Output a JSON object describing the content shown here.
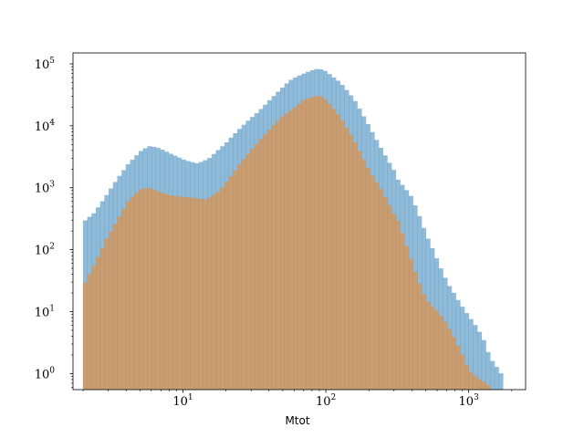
{
  "chart_data": {
    "type": "histogram",
    "xlabel": "Mtot",
    "ylabel": "",
    "title": "",
    "x_scale": "log",
    "y_scale": "log",
    "xlim": [
      1.7,
      2500
    ],
    "ylim": [
      0.55,
      150000
    ],
    "grid": false,
    "legend": "none",
    "x_ticks": [
      {
        "value": 10,
        "base": "10",
        "exp": "1"
      },
      {
        "value": 100,
        "base": "10",
        "exp": "2"
      },
      {
        "value": 1000,
        "base": "10",
        "exp": "3"
      }
    ],
    "y_ticks": [
      {
        "value": 1,
        "base": "10",
        "exp": "0"
      },
      {
        "value": 10,
        "base": "10",
        "exp": "1"
      },
      {
        "value": 100,
        "base": "10",
        "exp": "2"
      },
      {
        "value": 1000,
        "base": "10",
        "exp": "3"
      },
      {
        "value": 10000,
        "base": "10",
        "exp": "4"
      },
      {
        "value": 100000,
        "base": "10",
        "exp": "5"
      }
    ],
    "bins": {
      "log10_start": 0.3,
      "log10_end": 3.24,
      "count": 98
    },
    "series": [
      {
        "color": "#1f77b4",
        "alpha": 0.5,
        "profile": [
          [
            0.3,
            280
          ],
          [
            0.38,
            380
          ],
          [
            0.46,
            700
          ],
          [
            0.54,
            1400
          ],
          [
            0.62,
            2600
          ],
          [
            0.7,
            4000
          ],
          [
            0.76,
            4700
          ],
          [
            0.82,
            4300
          ],
          [
            0.9,
            3500
          ],
          [
            1.0,
            2900
          ],
          [
            1.1,
            2600
          ],
          [
            1.18,
            3000
          ],
          [
            1.3,
            5000
          ],
          [
            1.45,
            12000
          ],
          [
            1.6,
            26000
          ],
          [
            1.75,
            52000
          ],
          [
            1.9,
            80000
          ],
          [
            1.95,
            88000
          ],
          [
            2.0,
            80000
          ],
          [
            2.1,
            50000
          ],
          [
            2.2,
            25000
          ],
          [
            2.3,
            10000
          ],
          [
            2.4,
            4000
          ],
          [
            2.5,
            1600
          ],
          [
            2.6,
            600
          ],
          [
            2.7,
            150
          ],
          [
            2.8,
            60
          ],
          [
            2.9,
            25
          ],
          [
            3.0,
            8
          ],
          [
            3.1,
            3
          ],
          [
            3.15,
            1.5
          ],
          [
            3.24,
            1
          ]
        ]
      },
      {
        "color": "#ff7f0e",
        "alpha": 0.5,
        "profile": [
          [
            0.3,
            25
          ],
          [
            0.38,
            60
          ],
          [
            0.46,
            150
          ],
          [
            0.54,
            300
          ],
          [
            0.62,
            600
          ],
          [
            0.7,
            900
          ],
          [
            0.76,
            1000
          ],
          [
            0.82,
            920
          ],
          [
            0.9,
            800
          ],
          [
            1.0,
            700
          ],
          [
            1.08,
            650
          ],
          [
            1.16,
            620
          ],
          [
            1.25,
            900
          ],
          [
            1.4,
            2500
          ],
          [
            1.55,
            6000
          ],
          [
            1.7,
            15000
          ],
          [
            1.85,
            27000
          ],
          [
            1.95,
            30000
          ],
          [
            2.0,
            25000
          ],
          [
            2.1,
            14000
          ],
          [
            2.2,
            6000
          ],
          [
            2.3,
            2000
          ],
          [
            2.4,
            800
          ],
          [
            2.5,
            280
          ],
          [
            2.6,
            80
          ],
          [
            2.7,
            20
          ],
          [
            2.8,
            8
          ],
          [
            2.9,
            3
          ],
          [
            3.0,
            1.2
          ],
          [
            3.1,
            1
          ],
          [
            3.14,
            0.8
          ]
        ]
      }
    ]
  }
}
